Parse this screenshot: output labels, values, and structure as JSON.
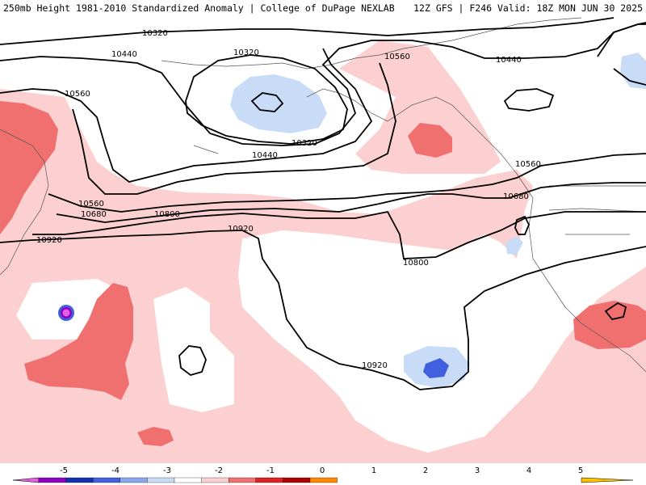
{
  "header": {
    "left": "250mb Height 1981-2010 Standardized Anomaly | College of DuPage NEXLAB",
    "right": "12Z GFS | F246 Valid: 18Z MON JUN 30 2025"
  },
  "contour_labels": [
    "10320",
    "10440",
    "10320",
    "10560",
    "10440",
    "10560",
    "10440",
    "10320",
    "10440",
    "10560",
    "10680",
    "10800",
    "10920",
    "10560",
    "10680",
    "10800",
    "10920",
    "10920"
  ],
  "colorbar": {
    "ticks": [
      "-5",
      "-4",
      "-3",
      "-2",
      "-1",
      "0",
      "1",
      "2",
      "3",
      "4",
      "5"
    ],
    "colors": [
      "#e060e0",
      "#9000c0",
      "#1030b0",
      "#4060e0",
      "#8aa8f0",
      "#c8dcf8",
      "#ffffff",
      "#fcd0d0",
      "#f07070",
      "#e02020",
      "#b00000",
      "#ff8800",
      "#ffc000"
    ]
  }
}
